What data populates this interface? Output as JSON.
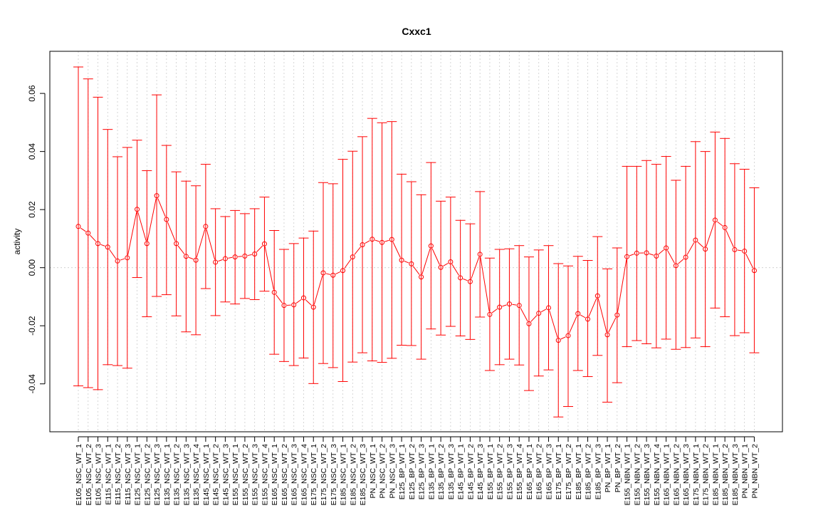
{
  "chart_data": {
    "type": "line",
    "title": "Cxxc1",
    "xlabel": "",
    "ylabel": "activity",
    "ylim": [
      -0.0565,
      0.0745
    ],
    "yticks": [
      -0.04,
      -0.02,
      0.0,
      0.02,
      0.04,
      0.06
    ],
    "ytick_labels": [
      "-0.04",
      "-0.02",
      "0.00",
      "0.02",
      "0.04",
      "0.06"
    ],
    "grid": true,
    "reference_line_y": 0.0,
    "colors": {
      "series": "#ff0000",
      "grid": "#cccccc"
    },
    "categories": [
      "E105_NSC_WT_1",
      "E105_NSC_WT_2",
      "E105_NSC_WT_3",
      "E115_NSC_WT_1",
      "E115_NSC_WT_2",
      "E115_NSC_WT_3",
      "E125_NSC_WT_1",
      "E125_NSC_WT_2",
      "E125_NSC_WT_3",
      "E135_NSC_WT_1",
      "E135_NSC_WT_2",
      "E135_NSC_WT_3",
      "E135_NSC_WT_4",
      "E145_NSC_WT_1",
      "E145_NSC_WT_2",
      "E145_NSC_WT_3",
      "E155_NSC_WT_1",
      "E155_NSC_WT_2",
      "E155_NSC_WT_3",
      "E155_NSC_WT_4",
      "E165_NSC_WT_1",
      "E165_NSC_WT_2",
      "E165_NSC_WT_3",
      "E165_NSC_WT_4",
      "E175_NSC_WT_1",
      "E175_NSC_WT_2",
      "E175_NSC_WT_3",
      "E185_NSC_WT_1",
      "E185_NSC_WT_2",
      "E185_NSC_WT_3",
      "PN_NSC_WT_1",
      "PN_NSC_WT_2",
      "PN_NSC_WT_3",
      "E125_BP_WT_1",
      "E125_BP_WT_2",
      "E125_BP_WT_3",
      "E135_BP_WT_1",
      "E135_BP_WT_2",
      "E135_BP_WT_3",
      "E145_BP_WT_1",
      "E145_BP_WT_2",
      "E145_BP_WT_3",
      "E155_BP_WT_1",
      "E155_BP_WT_2",
      "E155_BP_WT_3",
      "E155_BP_WT_4",
      "E165_BP_WT_1",
      "E165_BP_WT_2",
      "E165_BP_WT_3",
      "E175_BP_WT_1",
      "E175_BP_WT_2",
      "E185_BP_WT_1",
      "E185_BP_WT_2",
      "E185_BP_WT_3",
      "PN_BP_WT_1",
      "PN_BP_WT_2",
      "E155_NBN_WT_1",
      "E155_NBN_WT_2",
      "E155_NBN_WT_3",
      "E155_NBN_WT_4",
      "E165_NBN_WT_1",
      "E165_NBN_WT_2",
      "E165_NBN_WT_3",
      "E175_NBN_WT_1",
      "E175_NBN_WT_2",
      "E185_NBN_WT_1",
      "E185_NBN_WT_2",
      "E185_NBN_WT_3",
      "PN_NBN_WT_1",
      "PN_NBN_WT_2"
    ],
    "series": [
      {
        "values": [
          0.0142,
          0.0119,
          0.0083,
          0.0071,
          0.0023,
          0.0034,
          0.0201,
          0.0083,
          0.0248,
          0.0166,
          0.0083,
          0.0039,
          0.0026,
          0.0142,
          0.0019,
          0.0031,
          0.0037,
          0.004,
          0.0047,
          0.0082,
          -0.0085,
          -0.013,
          -0.0128,
          -0.0104,
          -0.0136,
          -0.0018,
          -0.0026,
          -0.001,
          0.0037,
          0.0079,
          0.0098,
          0.0087,
          0.0097,
          0.0026,
          0.0013,
          -0.0032,
          0.0075,
          0.0001,
          0.002,
          -0.0035,
          -0.0048,
          0.0046,
          -0.0161,
          -0.0136,
          -0.0125,
          -0.013,
          -0.0193,
          -0.0157,
          -0.0138,
          -0.025,
          -0.0234,
          -0.0158,
          -0.0177,
          -0.0097,
          -0.0231,
          -0.0163,
          0.0038,
          0.005,
          0.0051,
          0.004,
          0.0068,
          0.0007,
          0.0036,
          0.0095,
          0.0064,
          0.0164,
          0.0138,
          0.0062,
          0.0057,
          -0.001
        ],
        "upper": [
          0.0691,
          0.065,
          0.0587,
          0.0476,
          0.0382,
          0.0414,
          0.0439,
          0.0334,
          0.0595,
          0.0421,
          0.033,
          0.0298,
          0.0282,
          0.0356,
          0.0203,
          0.0176,
          0.0197,
          0.0186,
          0.0203,
          0.0243,
          0.0128,
          0.0063,
          0.0083,
          0.0102,
          0.0126,
          0.0293,
          0.0289,
          0.0373,
          0.0401,
          0.0451,
          0.0514,
          0.0499,
          0.0503,
          0.0322,
          0.0296,
          0.0251,
          0.0362,
          0.0229,
          0.0243,
          0.0163,
          0.0151,
          0.0262,
          0.0033,
          0.0063,
          0.0065,
          0.0076,
          0.0037,
          0.0061,
          0.0076,
          0.0014,
          0.0006,
          0.0039,
          0.0025,
          0.0107,
          -0.0004,
          0.0068,
          0.0349,
          0.0349,
          0.0369,
          0.0356,
          0.0383,
          0.0301,
          0.0349,
          0.0434,
          0.04,
          0.0467,
          0.0445,
          0.0358,
          0.0339,
          0.0275
        ],
        "lower": [
          -0.0407,
          -0.0413,
          -0.042,
          -0.0334,
          -0.0337,
          -0.0346,
          -0.0034,
          -0.0169,
          -0.0099,
          -0.0093,
          -0.0166,
          -0.0221,
          -0.0231,
          -0.0072,
          -0.0165,
          -0.0118,
          -0.0125,
          -0.0106,
          -0.011,
          -0.0081,
          -0.0298,
          -0.0323,
          -0.0337,
          -0.0311,
          -0.0399,
          -0.033,
          -0.0344,
          -0.0392,
          -0.0325,
          -0.0293,
          -0.0321,
          -0.0326,
          -0.0312,
          -0.0267,
          -0.0268,
          -0.0315,
          -0.0211,
          -0.0232,
          -0.0202,
          -0.0235,
          -0.0247,
          -0.017,
          -0.0354,
          -0.0334,
          -0.0315,
          -0.0335,
          -0.0423,
          -0.0373,
          -0.0352,
          -0.0514,
          -0.0478,
          -0.0354,
          -0.0375,
          -0.0302,
          -0.0463,
          -0.0396,
          -0.0272,
          -0.0251,
          -0.0262,
          -0.0276,
          -0.0246,
          -0.0281,
          -0.0275,
          -0.0242,
          -0.0272,
          -0.0139,
          -0.0169,
          -0.0234,
          -0.0224,
          -0.0293
        ]
      }
    ]
  }
}
